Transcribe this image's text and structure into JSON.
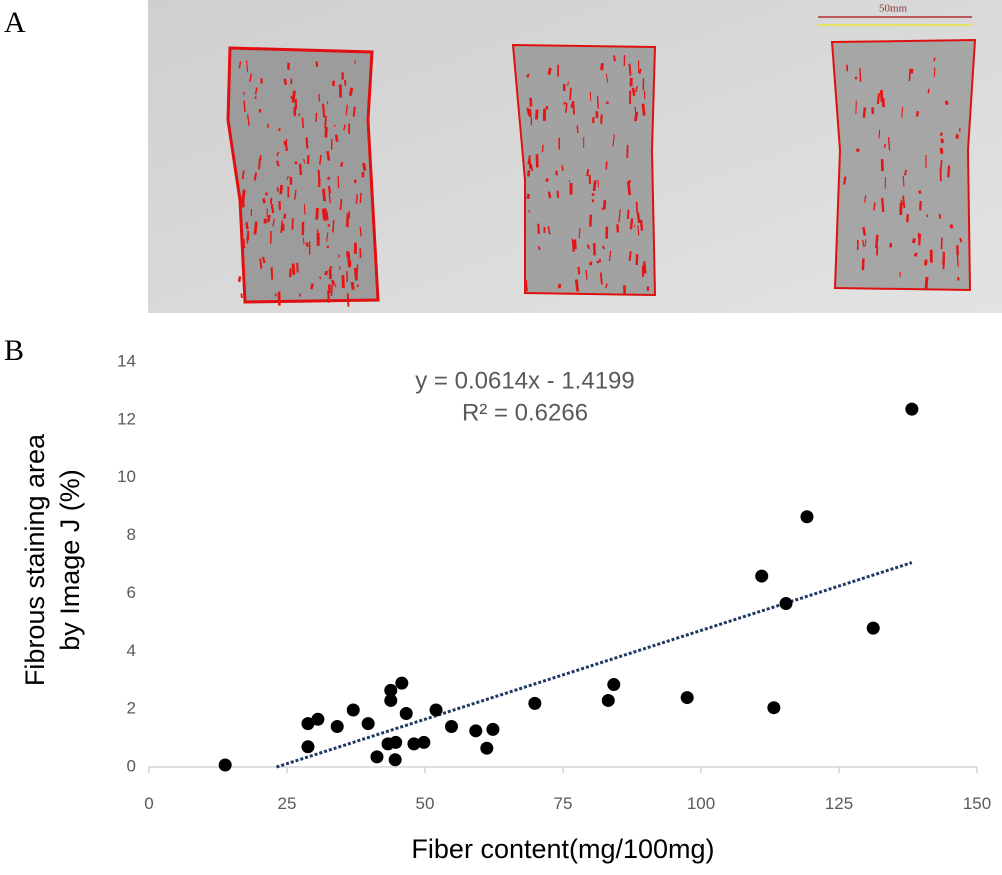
{
  "panel_labels": [
    "A",
    "B"
  ],
  "scale_bar_label": "50mm",
  "chart_data": {
    "type": "scatter",
    "xlabel": "Fiber content(mg/100mg)",
    "ylabel": [
      "Fibrous staining area",
      "by Image J (%)"
    ],
    "annotations": [
      "y = 0.0614x - 1.4199",
      "R² = 0.6266"
    ],
    "color": "#000000",
    "xlim": [
      0,
      150
    ],
    "xticks": [
      0,
      25,
      50,
      75,
      100,
      125,
      150
    ],
    "ylim": [
      0,
      14
    ],
    "yticks": [
      0,
      2,
      4,
      6,
      8,
      10,
      12,
      14
    ],
    "grid": false,
    "trendline": {
      "slope": 0.0614,
      "intercept": -1.4199,
      "xlim": [
        23.1,
        138.2
      ],
      "color": "#1f3864"
    },
    "x": [
      13.8,
      28.8,
      30.6,
      28.8,
      34.1,
      37.0,
      39.7,
      41.3,
      43.3,
      43.8,
      43.8,
      44.7,
      44.6,
      45.8,
      46.6,
      48.0,
      49.8,
      52.0,
      54.8,
      59.2,
      61.2,
      62.3,
      69.9,
      83.2,
      84.2,
      97.5,
      111.0,
      113.2,
      115.4,
      119.2,
      131.2,
      138.2
    ],
    "values": [
      0.07,
      1.5,
      1.65,
      0.7,
      1.4,
      1.97,
      1.5,
      0.35,
      0.8,
      2.65,
      2.3,
      0.85,
      0.25,
      2.9,
      1.85,
      0.8,
      0.85,
      1.97,
      1.4,
      1.25,
      0.65,
      1.3,
      2.2,
      2.3,
      2.85,
      2.4,
      6.6,
      2.05,
      5.65,
      8.65,
      4.8,
      12.37
    ]
  }
}
